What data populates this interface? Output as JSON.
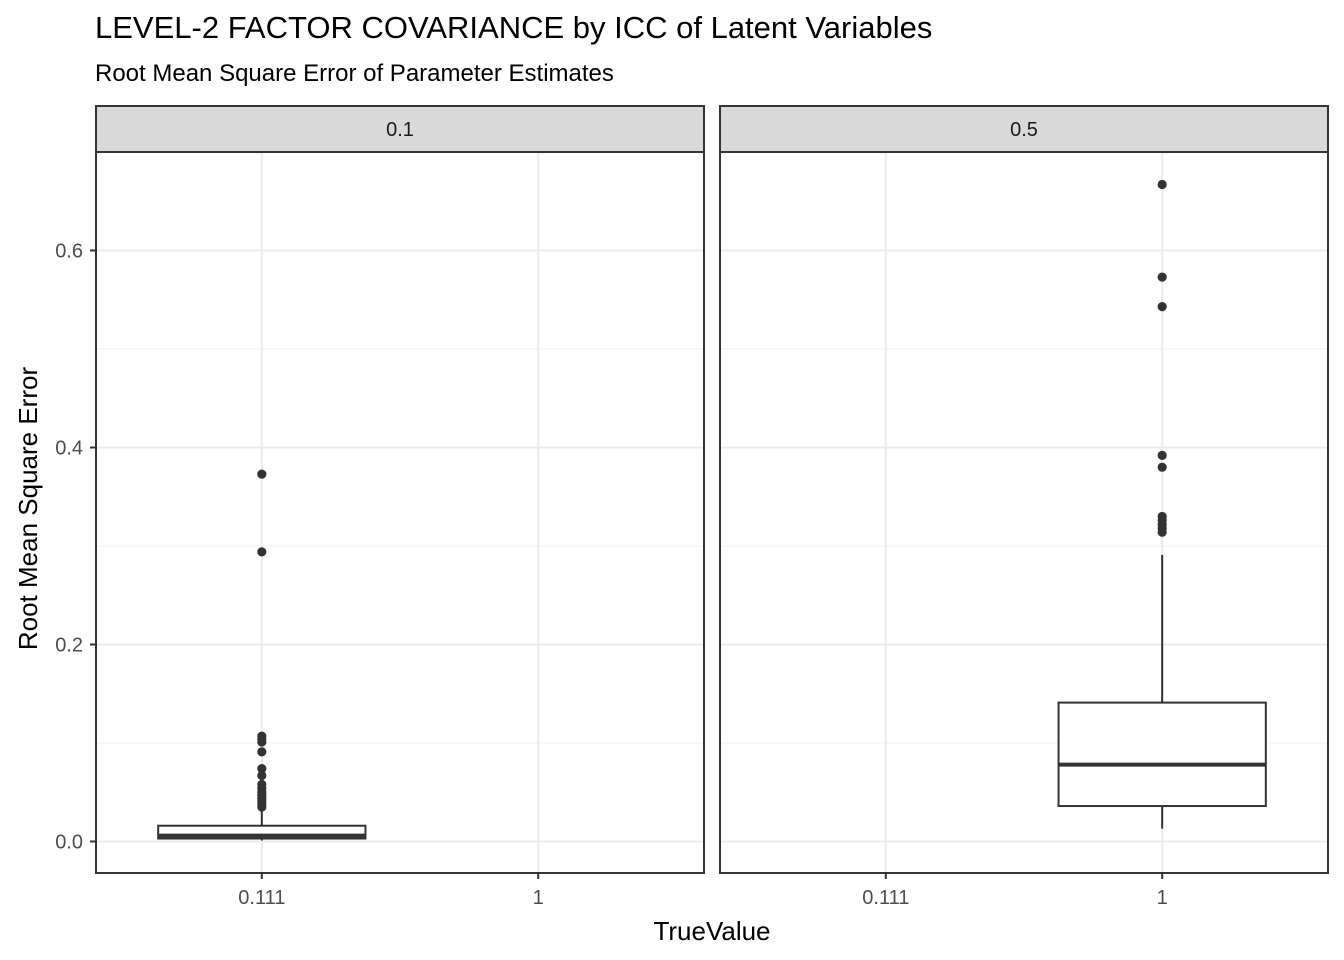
{
  "chart_data": {
    "type": "boxplot",
    "title": "LEVEL-2 FACTOR COVARIANCE by ICC of Latent Variables",
    "subtitle": "Root Mean Square Error of Parameter Estimates",
    "xlabel": "TrueValue",
    "ylabel": "Root Mean Square Error",
    "categories": [
      "0.111",
      "1"
    ],
    "ylim": [
      -0.032,
      0.7
    ],
    "yticks": [
      0.0,
      0.2,
      0.4,
      0.6
    ],
    "ytick_labels": [
      "0.0",
      "0.2",
      "0.4",
      "0.6"
    ],
    "grid": true,
    "facets": [
      {
        "label": "0.1",
        "boxes": [
          {
            "category": "0.111",
            "whisker_low": 0.001,
            "q1": 0.003,
            "median": 0.006,
            "q3": 0.016,
            "whisker_high": 0.031,
            "outliers": [
              0.373,
              0.294,
              0.107,
              0.104,
              0.101,
              0.091,
              0.074,
              0.067,
              0.058,
              0.054,
              0.05,
              0.047,
              0.044,
              0.041,
              0.038,
              0.035
            ]
          }
        ]
      },
      {
        "label": "0.5",
        "boxes": [
          {
            "category": "1",
            "whisker_low": 0.013,
            "q1": 0.036,
            "median": 0.078,
            "q3": 0.141,
            "whisker_high": 0.291,
            "outliers": [
              0.667,
              0.573,
              0.543,
              0.392,
              0.38,
              0.33,
              0.326,
              0.322,
              0.318,
              0.314
            ]
          }
        ]
      }
    ]
  }
}
